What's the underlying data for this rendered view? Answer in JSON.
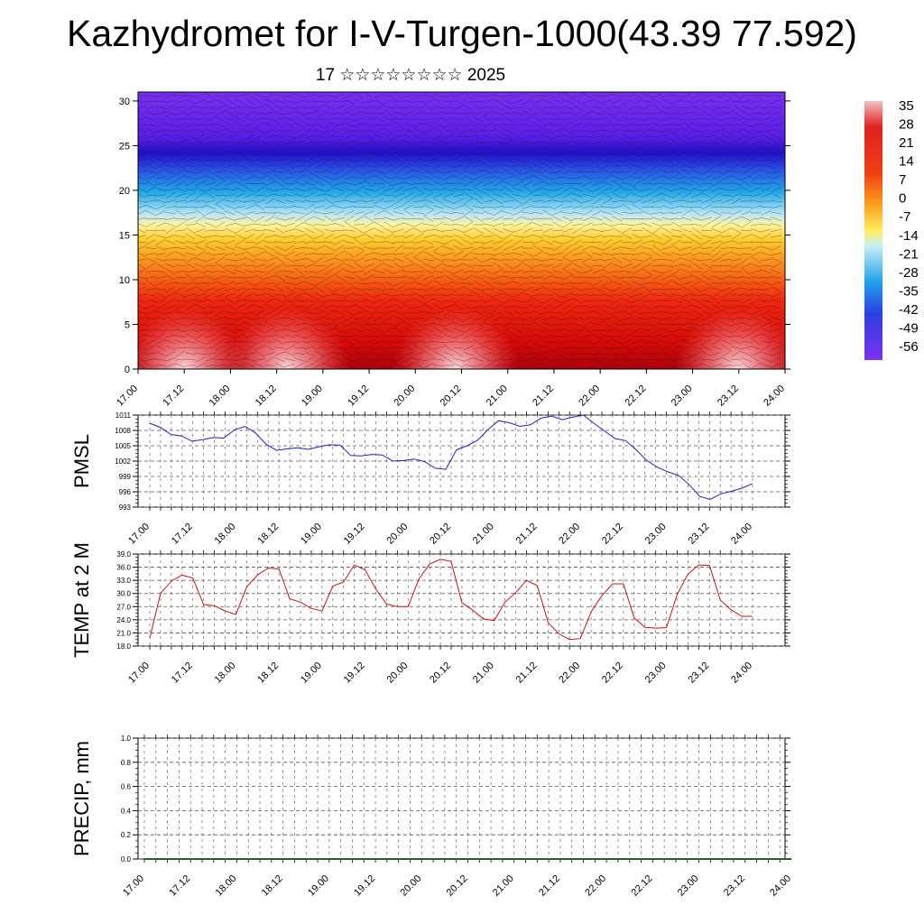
{
  "title": "Kazhydromet for I-V-Turgen-1000(43.39 77.592)",
  "subtitle": "17 ☆☆☆☆☆☆☆☆ 2025",
  "colors": {
    "pmsl_line": "#1f1fd0",
    "temp_line": "#d01010"
  },
  "chart_data": [
    {
      "type": "heatmap",
      "title": "",
      "xlabel": "",
      "ylabel": "",
      "x_tick_labels": [
        "17.00",
        "17.12",
        "18.00",
        "18.12",
        "19.00",
        "19.12",
        "20.00",
        "20.12",
        "21.00",
        "21.12",
        "22.00",
        "22.12",
        "23.00",
        "23.12",
        "24.00"
      ],
      "y_ticks": [
        0,
        5,
        10,
        15,
        20,
        25,
        30
      ],
      "ylim": [
        0,
        31
      ],
      "colorbar_labels": [
        "35",
        "28",
        "21",
        "14",
        "7",
        "0",
        "-7",
        "-14",
        "-21",
        "-28",
        "-35",
        "-42",
        "-49",
        "-56"
      ],
      "overlay": "wind barbs"
    },
    {
      "type": "line",
      "ylabel": "PMSL",
      "ylim": [
        993,
        1011
      ],
      "y_ticks": [
        1011,
        1008,
        1005,
        1002,
        999,
        996,
        993
      ],
      "x_tick_labels": [
        "17.00",
        "17.12",
        "18.00",
        "18.12",
        "19.00",
        "19.12",
        "20.00",
        "20.12",
        "21.00",
        "21.12",
        "22.00",
        "22.12",
        "23.00",
        "23.12",
        "24.00"
      ],
      "series": [
        {
          "values": [
            1009.4,
            1008.6,
            1007.2,
            1006.9,
            1005.9,
            1006.2,
            1006.6,
            1006.5,
            1008.1,
            1008.8,
            1007.5,
            1005.3,
            1004.1,
            1004.4,
            1004.6,
            1004.3,
            1004.8,
            1005.2,
            1005.1,
            1003.1,
            1003.0,
            1003.3,
            1003.2,
            1002.0,
            1002.1,
            1002.4,
            1001.9,
            1000.6,
            1000.4,
            1004.2,
            1005.0,
            1006.1,
            1008.2,
            1009.9,
            1009.5,
            1008.8,
            1009.1,
            1010.4,
            1010.8,
            1010.1,
            1010.6,
            1011.0,
            1009.4,
            1007.9,
            1006.4,
            1006.0,
            1004.2,
            1002.1,
            1000.8,
            999.9,
            999.2,
            997.4,
            995.1,
            994.5,
            995.6,
            996.1,
            996.7,
            997.6
          ]
        }
      ]
    },
    {
      "type": "line",
      "ylabel": "TEMP at 2 M",
      "ylim": [
        18.0,
        39.0
      ],
      "y_ticks": [
        "39.0",
        "36.0",
        "33.0",
        "30.0",
        "27.0",
        "24.0",
        "21.0",
        "18.0"
      ],
      "x_tick_labels": [
        "17.00",
        "17.12",
        "18.00",
        "18.12",
        "19.00",
        "19.12",
        "20.00",
        "20.12",
        "21.00",
        "21.12",
        "22.00",
        "22.12",
        "23.00",
        "23.12",
        "24.00"
      ],
      "series": [
        {
          "values": [
            19.8,
            30.0,
            32.8,
            34.2,
            33.5,
            27.5,
            27.2,
            26.0,
            25.2,
            31.5,
            34.2,
            35.8,
            35.6,
            28.8,
            28.0,
            26.6,
            26.0,
            31.7,
            32.6,
            36.5,
            35.4,
            31.0,
            27.6,
            27.0,
            27.0,
            33.3,
            36.7,
            37.8,
            37.3,
            27.9,
            26.2,
            24.2,
            23.8,
            28.0,
            30.2,
            33.0,
            31.8,
            23.4,
            20.8,
            19.5,
            19.7,
            25.8,
            29.5,
            32.2,
            32.2,
            24.4,
            22.3,
            22.1,
            22.2,
            29.8,
            34.4,
            36.5,
            36.4,
            28.5,
            26.3,
            24.8,
            24.8
          ]
        }
      ]
    },
    {
      "type": "line",
      "ylabel": "PRECIP, mm",
      "ylim": [
        0.0,
        1.0
      ],
      "y_ticks": [
        "1.0",
        "0.8",
        "0.6",
        "0.4",
        "0.2",
        "0.0"
      ],
      "x_tick_labels": [
        "17.00",
        "17.12",
        "18.00",
        "18.12",
        "19.00",
        "19.12",
        "20.00",
        "20.12",
        "21.00",
        "21.12",
        "22.00",
        "22.12",
        "23.00",
        "23.12",
        "24.00"
      ],
      "series": [
        {
          "values": [
            0,
            0,
            0,
            0,
            0,
            0,
            0,
            0,
            0,
            0,
            0,
            0,
            0,
            0,
            0
          ]
        }
      ]
    }
  ]
}
